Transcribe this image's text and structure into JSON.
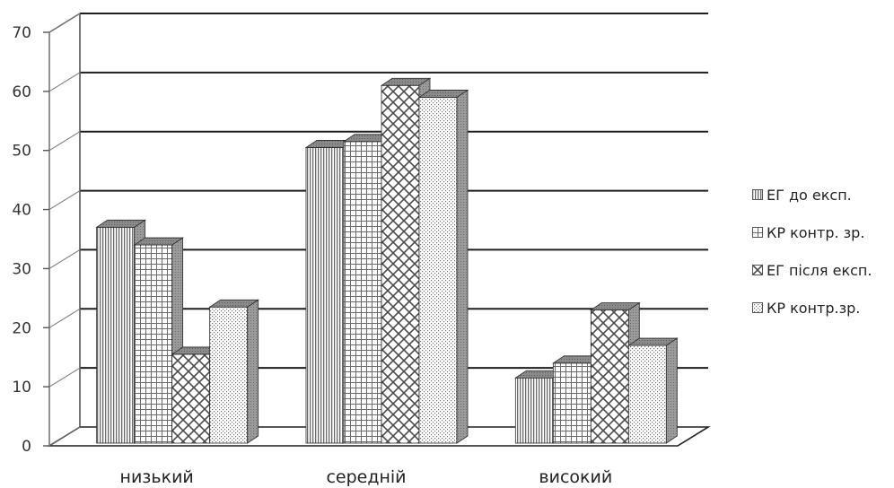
{
  "chart_data": {
    "type": "bar",
    "categories": [
      "низький",
      "середній",
      "високий"
    ],
    "series": [
      {
        "name": "ЕГ до експ.",
        "values": [
          37,
          50.5,
          11.5
        ],
        "pattern": "vlines"
      },
      {
        "name": "КР контр. зр.",
        "values": [
          34,
          51.5,
          14
        ],
        "pattern": "grid"
      },
      {
        "name": "ЕГ після експ.",
        "values": [
          15.5,
          61,
          23
        ],
        "pattern": "zigzag"
      },
      {
        "name": "КР контр.зр.",
        "values": [
          23.5,
          59,
          17
        ],
        "pattern": "dots"
      }
    ],
    "yticks": [
      "0",
      "10",
      "20",
      "30",
      "40",
      "50",
      "60",
      "70"
    ],
    "ylim": [
      0,
      70
    ],
    "grid": true,
    "legend_position": "right",
    "colors": {
      "bar_stroke": "#2b2b2b",
      "pattern_ink": "#6a6a6a",
      "bar_fill": "#ffffff",
      "side_fill": "#9a9a9a",
      "gridline": "#1e1e1e"
    }
  }
}
